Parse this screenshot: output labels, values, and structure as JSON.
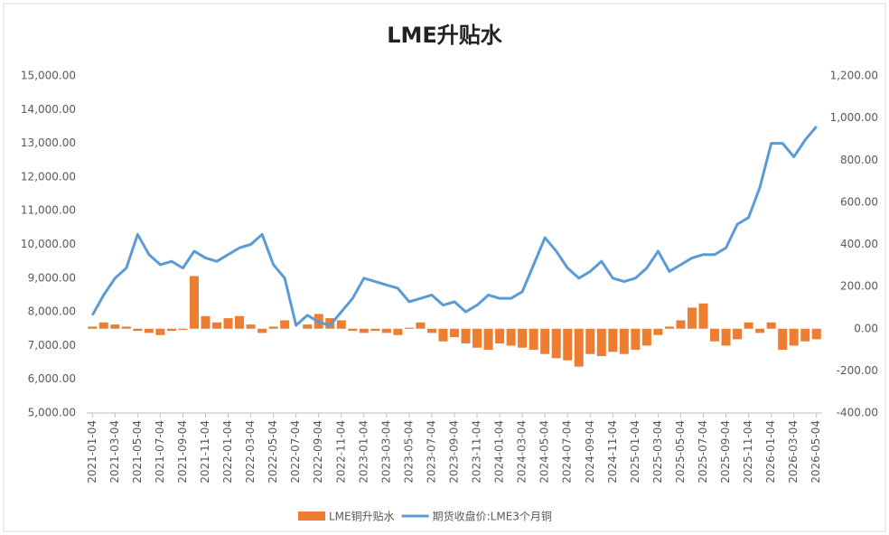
{
  "chart_data": {
    "type": "bar-line",
    "title": "LME升贴水",
    "categories": [
      "2021-01-04",
      null,
      "2021-03-04",
      null,
      "2021-05-04",
      null,
      "2021-07-04",
      null,
      "2021-09-04",
      null,
      "2021-11-04",
      null,
      "2022-01-04",
      null,
      "2022-03-04",
      null,
      "2022-05-04",
      null,
      "2022-07-04",
      null,
      "2022-09-04",
      null,
      "2022-11-04",
      null,
      "2023-01-04",
      null,
      "2023-03-04",
      null,
      "2023-05-04",
      null,
      "2023-07-04",
      null,
      "2023-09-04",
      null,
      "2023-11-04",
      null,
      "2024-01-04",
      null,
      "2024-03-04",
      null,
      "2024-05-04",
      null,
      "2024-07-04",
      null,
      "2024-09-04",
      null,
      "2024-11-04",
      null,
      "2025-01-04",
      null,
      "2025-03-04",
      null,
      "2025-05-04",
      null,
      "2025-07-04",
      null,
      "2025-09-04",
      null,
      "2025-11-04",
      null,
      "2026-01-04",
      null,
      "2026-03-04",
      null,
      "2026-05-04"
    ],
    "series": [
      {
        "name": "LME铜升贴水",
        "color": "#ED7D31",
        "axis": "y2",
        "values": [
          10,
          30,
          20,
          10,
          -10,
          -20,
          -30,
          -10,
          -5,
          250,
          60,
          30,
          50,
          60,
          20,
          -20,
          10,
          40,
          0,
          20,
          70,
          50,
          40,
          -10,
          -20,
          -10,
          -20,
          -30,
          5,
          30,
          -20,
          -60,
          -40,
          -70,
          -90,
          -100,
          -70,
          -80,
          -90,
          -100,
          -120,
          -140,
          -150,
          -180,
          -120,
          -130,
          -110,
          -120,
          -100,
          -80,
          -30,
          10,
          40,
          100,
          120,
          -60,
          -80,
          -50,
          30,
          -20,
          30,
          -100,
          -80,
          -60,
          -50
        ]
      },
      {
        "name": "期货收盘价:LME3个月铜",
        "color": "#5B9BD5",
        "values": [
          7900,
          8500,
          9000,
          9300,
          10300,
          9700,
          9400,
          9500,
          9300,
          9800,
          9600,
          9500,
          9700,
          9900,
          10000,
          10300,
          9400,
          9000,
          7600,
          7900,
          7700,
          7600,
          8000,
          8400,
          9000,
          8900,
          8800,
          8700,
          8300,
          8400,
          8500,
          8200,
          8300,
          8000,
          8200,
          8500,
          8400,
          8400,
          8600,
          9400,
          10200,
          9800,
          9300,
          9000,
          9200,
          9500,
          9000,
          8900,
          9000,
          9300,
          9800,
          9200,
          9400,
          9600,
          9700,
          9700,
          9900,
          10600,
          10800,
          11700,
          13000,
          13000,
          12600,
          13100,
          13500
        ]
      }
    ],
    "ylim": [
      5000,
      15000
    ],
    "yticks": [
      {
        "value": 5000,
        "label": "5,000.00"
      },
      {
        "value": 6000,
        "label": "6,000.00"
      },
      {
        "value": 7000,
        "label": "7,000.00"
      },
      {
        "value": 8000,
        "label": "8,000.00"
      },
      {
        "value": 9000,
        "label": "9,000.00"
      },
      {
        "value": 10000,
        "label": "10,000.00"
      },
      {
        "value": 11000,
        "label": "11,000.00"
      },
      {
        "value": 12000,
        "label": "12,000.00"
      },
      {
        "value": 13000,
        "label": "13,000.00"
      },
      {
        "value": 14000,
        "label": "14,000.00"
      },
      {
        "value": 15000,
        "label": "15,000.00"
      }
    ],
    "y2lim": [
      -400,
      1200
    ],
    "y2ticks": [
      {
        "value": -400,
        "label": "-400.00"
      },
      {
        "value": -200,
        "label": "-200.00"
      },
      {
        "value": 0,
        "label": "0.00"
      },
      {
        "value": 200,
        "label": "200.00"
      },
      {
        "value": 400,
        "label": "400.00"
      },
      {
        "value": 600,
        "label": "600.00"
      },
      {
        "value": 800,
        "label": "800.00"
      },
      {
        "value": 1000,
        "label": "1,000.00"
      },
      {
        "value": 1200,
        "label": "1,200.00"
      }
    ],
    "legend": "bottom",
    "grid": false
  }
}
